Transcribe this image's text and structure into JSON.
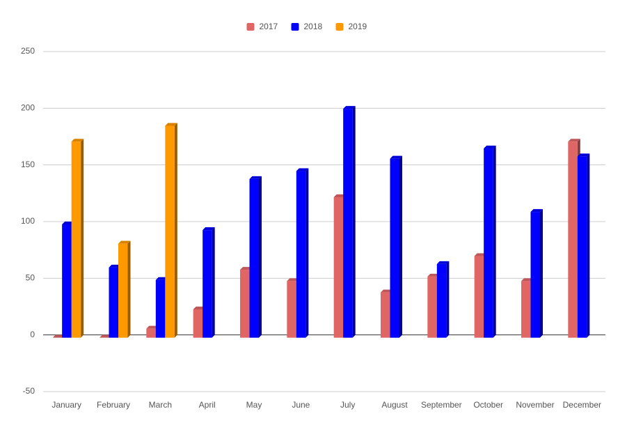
{
  "chart_data": {
    "type": "bar",
    "categories": [
      "January",
      "February",
      "March",
      "April",
      "May",
      "June",
      "July",
      "August",
      "September",
      "October",
      "November",
      "December"
    ],
    "series": [
      {
        "name": "2017",
        "color": "#e06666",
        "values": [
          0,
          0,
          8,
          25,
          60,
          50,
          124,
          40,
          54,
          72,
          50,
          173
        ]
      },
      {
        "name": "2018",
        "color": "#0000ff",
        "values": [
          100,
          62,
          51,
          95,
          140,
          147,
          202,
          158,
          65,
          167,
          111,
          160
        ]
      },
      {
        "name": "2019",
        "color": "#ff9900",
        "values": [
          173,
          83,
          187,
          null,
          null,
          null,
          null,
          null,
          null,
          null,
          null,
          null
        ]
      }
    ],
    "ylim": [
      -50,
      250
    ],
    "yticks": [
      -50,
      0,
      50,
      100,
      150,
      200,
      250
    ],
    "grid": true,
    "legend": "top"
  }
}
